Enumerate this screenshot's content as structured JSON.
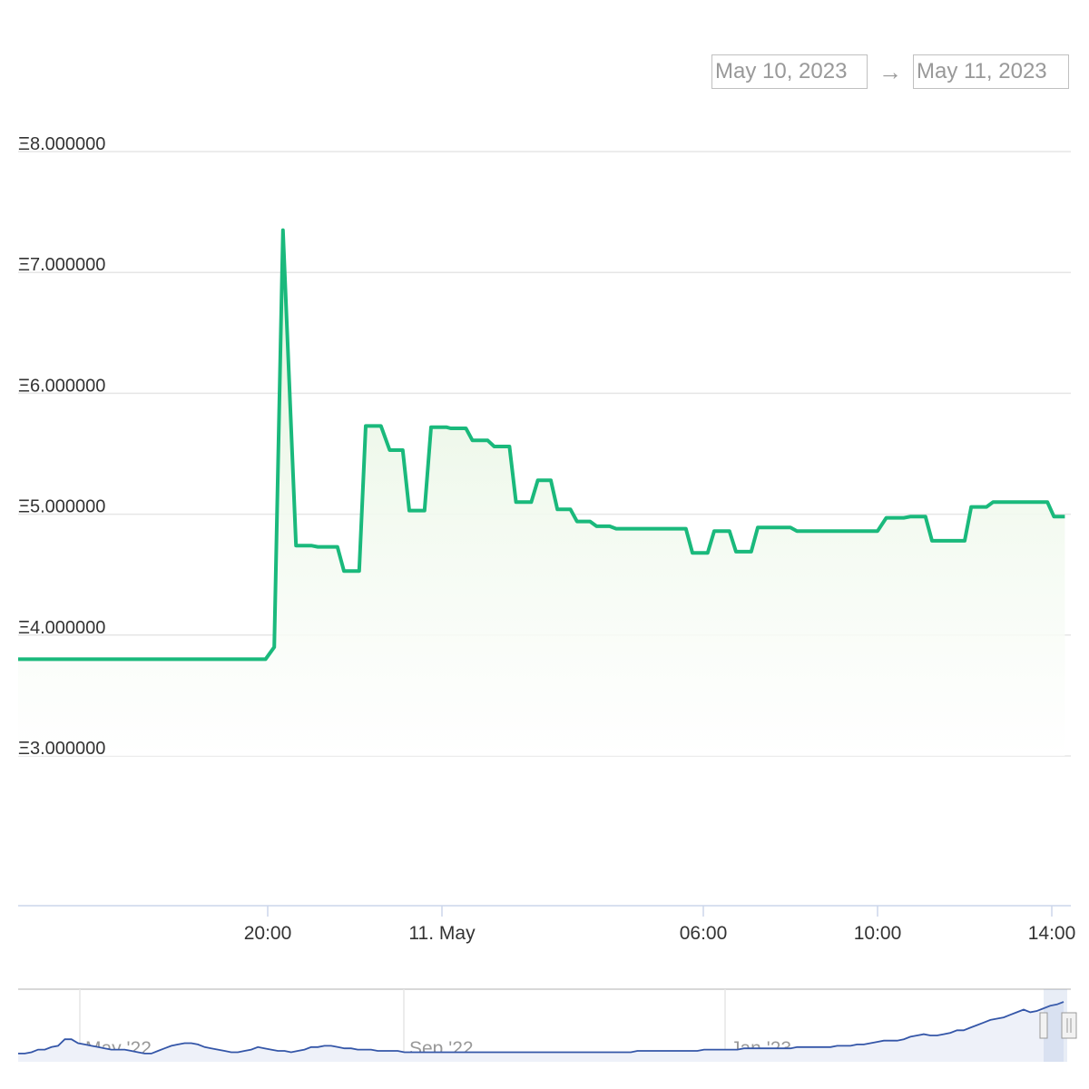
{
  "range_selector": {
    "from": "May 10, 2023",
    "separator": "→",
    "to": "May 11, 2023"
  },
  "colors": {
    "line": "#1ab97c",
    "fill_top": "#e2f3dc",
    "grid": "#e6e6e6",
    "navigator_line": "#3456a8",
    "navigator_fill": "#eef1f9"
  },
  "chart_data": {
    "type": "area",
    "currency_symbol": "Ξ",
    "x_unit": "hour offset from 10 May 2023 00:00",
    "ylim": [
      2000000,
      8000000
    ],
    "y_ticks": [
      {
        "value": 8000000,
        "label": "Ξ8.000000"
      },
      {
        "value": 7000000,
        "label": "Ξ7.000000"
      },
      {
        "value": 6000000,
        "label": "Ξ6.000000"
      },
      {
        "value": 5000000,
        "label": "Ξ5.000000"
      },
      {
        "value": 4000000,
        "label": "Ξ4.000000"
      },
      {
        "value": 3000000,
        "label": "Ξ3.000000"
      }
    ],
    "x_ticks": [
      {
        "value": 20,
        "label": "20:00"
      },
      {
        "value": 24,
        "label": "11. May"
      },
      {
        "value": 30,
        "label": "06:00"
      },
      {
        "value": 34,
        "label": "10:00"
      },
      {
        "value": 38,
        "label": "14:00"
      }
    ],
    "grid": true,
    "legend": "none",
    "points": [
      [
        14.27,
        3800000
      ],
      [
        19.95,
        3800000
      ],
      [
        20.15,
        3900000
      ],
      [
        20.35,
        7350000
      ],
      [
        20.65,
        4740000
      ],
      [
        21.0,
        4740000
      ],
      [
        21.15,
        4730000
      ],
      [
        21.6,
        4730000
      ],
      [
        21.75,
        4530000
      ],
      [
        22.1,
        4530000
      ],
      [
        22.25,
        5730000
      ],
      [
        22.6,
        5730000
      ],
      [
        22.8,
        5530000
      ],
      [
        23.1,
        5530000
      ],
      [
        23.25,
        5030000
      ],
      [
        23.6,
        5030000
      ],
      [
        23.75,
        5720000
      ],
      [
        24.1,
        5720000
      ],
      [
        24.2,
        5710000
      ],
      [
        24.55,
        5710000
      ],
      [
        24.7,
        5610000
      ],
      [
        25.05,
        5610000
      ],
      [
        25.2,
        5560000
      ],
      [
        25.55,
        5560000
      ],
      [
        25.7,
        5100000
      ],
      [
        26.05,
        5100000
      ],
      [
        26.2,
        5280000
      ],
      [
        26.5,
        5280000
      ],
      [
        26.65,
        5040000
      ],
      [
        26.95,
        5040000
      ],
      [
        27.1,
        4940000
      ],
      [
        27.4,
        4940000
      ],
      [
        27.55,
        4900000
      ],
      [
        27.85,
        4900000
      ],
      [
        28.0,
        4880000
      ],
      [
        29.6,
        4880000
      ],
      [
        29.75,
        4680000
      ],
      [
        30.1,
        4680000
      ],
      [
        30.25,
        4860000
      ],
      [
        30.6,
        4860000
      ],
      [
        30.75,
        4690000
      ],
      [
        31.1,
        4690000
      ],
      [
        31.25,
        4890000
      ],
      [
        32.0,
        4890000
      ],
      [
        32.15,
        4860000
      ],
      [
        34.0,
        4860000
      ],
      [
        34.2,
        4970000
      ],
      [
        34.6,
        4970000
      ],
      [
        34.75,
        4980000
      ],
      [
        35.1,
        4980000
      ],
      [
        35.25,
        4780000
      ],
      [
        36.0,
        4780000
      ],
      [
        36.15,
        5060000
      ],
      [
        36.5,
        5060000
      ],
      [
        36.65,
        5100000
      ],
      [
        37.9,
        5100000
      ],
      [
        38.05,
        4980000
      ],
      [
        38.3,
        4980000
      ]
    ]
  },
  "navigator": {
    "type": "line",
    "x_ticks": [
      "May '22",
      "Sep '22",
      "Jan '23"
    ],
    "values": [
      30,
      30,
      31,
      33,
      33,
      35,
      36,
      41,
      41,
      38,
      37,
      36,
      35,
      34,
      33,
      33,
      33,
      32,
      31,
      30,
      30,
      32,
      34,
      36,
      37,
      38,
      38,
      37,
      35,
      34,
      33,
      32,
      31,
      31,
      32,
      33,
      35,
      34,
      33,
      32,
      32,
      31,
      32,
      33,
      35,
      35,
      36,
      36,
      35,
      34,
      34,
      33,
      33,
      33,
      32,
      32,
      32,
      32,
      31,
      31,
      31,
      31,
      31,
      31,
      31,
      31,
      31,
      31,
      31,
      31,
      31,
      31,
      31,
      31,
      31,
      31,
      31,
      31,
      31,
      31,
      31,
      31,
      31,
      31,
      31,
      31,
      31,
      31,
      31,
      31,
      31,
      31,
      31,
      32,
      32,
      32,
      32,
      32,
      32,
      32,
      32,
      32,
      32,
      33,
      33,
      33,
      33,
      33,
      33,
      34,
      34,
      34,
      34,
      34,
      34,
      34,
      34,
      35,
      35,
      35,
      35,
      35,
      35,
      36,
      36,
      36,
      37,
      37,
      38,
      39,
      40,
      40,
      40,
      41,
      43,
      44,
      45,
      44,
      44,
      45,
      46,
      48,
      48,
      50,
      52,
      54,
      56,
      57,
      58,
      60,
      62,
      64,
      62,
      63,
      65,
      67,
      68,
      70
    ]
  }
}
